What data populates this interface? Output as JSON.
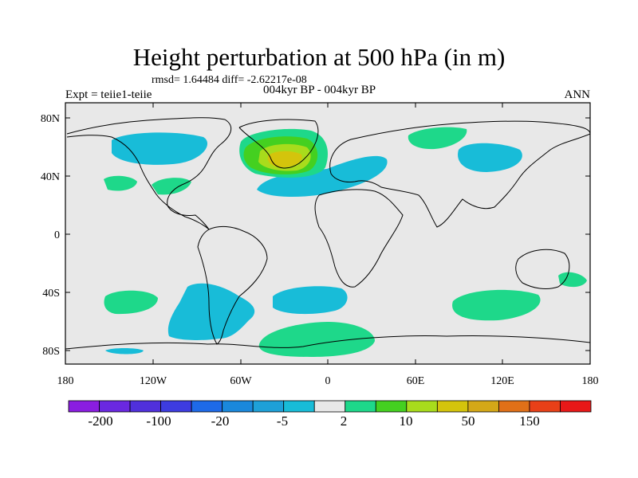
{
  "title": "Height perturbation at 500 hPa (in m)",
  "stats": "rmsd= 1.64484  diff= -2.62217e-08",
  "experiment": "Expt = teiie1-teiie",
  "period": "004kyr BP - 004kyr BP",
  "season": "ANN",
  "lon_ticks": [
    "180",
    "120W",
    "60W",
    "0",
    "60E",
    "120E",
    "180"
  ],
  "lat_ticks": [
    "80N",
    "40N",
    "0",
    "40S",
    "80S"
  ],
  "colorbar": {
    "colors": [
      "#8a1de0",
      "#6a28e0",
      "#5030dc",
      "#3d3ce0",
      "#1e6ae8",
      "#1a88dc",
      "#1ea0d8",
      "#18bcd8",
      "#e8e8e8",
      "#1ed88a",
      "#44d020",
      "#a8dc1c",
      "#d4c40c",
      "#d4a818",
      "#e07018",
      "#e84018",
      "#e81818"
    ],
    "labels": [
      "-200",
      "-100",
      "-20",
      "-5",
      "2",
      "10",
      "50",
      "150"
    ]
  },
  "map_colors": {
    "ocean_bg": "#e8e8e8",
    "negative_5": "#18bcd8",
    "positive_2": "#1ed88a",
    "positive_10": "#44d020",
    "positive_20": "#a8dc1c",
    "positive_50": "#d4c40c"
  }
}
